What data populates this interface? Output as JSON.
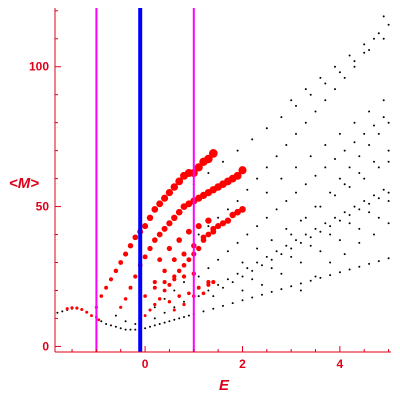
{
  "chart_data": {
    "type": "scatter",
    "title": "",
    "xlabel": "E",
    "ylabel": "<M>",
    "xlim": [
      -1.85,
      5.05
    ],
    "ylim": [
      -2,
      121
    ],
    "x_ticks": [
      0,
      2,
      4
    ],
    "x_tick_labels": [
      "0",
      "2",
      "4"
    ],
    "y_ticks": [
      0,
      50,
      100
    ],
    "y_tick_labels": [
      "0",
      "50",
      "100"
    ],
    "grid": false,
    "legend": "none",
    "vertical_lines": [
      {
        "x": -1.0,
        "color": "#ff00ff",
        "style": "thin"
      },
      {
        "x": -0.1,
        "color": "#0000ff",
        "style": "thick"
      },
      {
        "x": 1.0,
        "color": "#ff00ff",
        "style": "thin"
      }
    ],
    "series": [
      {
        "color": "#000000",
        "marker": "small-dot",
        "points": [
          [
            -1.8,
            12
          ],
          [
            -1.7,
            12.5
          ],
          [
            -1.6,
            13
          ],
          [
            -1.5,
            13.5
          ],
          [
            -1.0,
            10
          ],
          [
            -0.9,
            9
          ],
          [
            -0.8,
            8
          ],
          [
            -0.7,
            7.5
          ],
          [
            -0.6,
            7
          ],
          [
            -0.5,
            6.5
          ],
          [
            -0.4,
            6
          ],
          [
            -0.3,
            6
          ],
          [
            -0.2,
            6
          ],
          [
            -0.1,
            6
          ],
          [
            0.0,
            6.5
          ],
          [
            0.1,
            7
          ],
          [
            0.2,
            7.5
          ],
          [
            0.3,
            8
          ],
          [
            0.4,
            8.5
          ],
          [
            0.5,
            9
          ],
          [
            0.6,
            9.5
          ],
          [
            0.7,
            10
          ],
          [
            0.8,
            10.5
          ],
          [
            0.9,
            11
          ],
          [
            1.0,
            11.5
          ],
          [
            1.2,
            12.5
          ],
          [
            1.4,
            13.5
          ],
          [
            1.6,
            14.5
          ],
          [
            1.8,
            15.5
          ],
          [
            2.0,
            16.5
          ],
          [
            2.2,
            17.5
          ],
          [
            2.4,
            18.5
          ],
          [
            2.6,
            19.5
          ],
          [
            2.8,
            20.5
          ],
          [
            3.0,
            21.5
          ],
          [
            3.2,
            22.5
          ],
          [
            3.4,
            23.5
          ],
          [
            3.6,
            24.5
          ],
          [
            3.8,
            25.5
          ],
          [
            4.0,
            26.5
          ],
          [
            4.2,
            27.5
          ],
          [
            4.4,
            28.5
          ],
          [
            4.6,
            29.5
          ],
          [
            4.8,
            30.5
          ],
          [
            5.0,
            31.5
          ],
          [
            -0.6,
            11
          ],
          [
            -0.4,
            9
          ],
          [
            -0.2,
            8
          ],
          [
            0.2,
            10
          ],
          [
            0.4,
            12
          ],
          [
            0.6,
            14
          ],
          [
            0.8,
            16
          ],
          [
            0.2,
            14
          ],
          [
            0.4,
            17
          ],
          [
            0.6,
            20
          ],
          [
            0.8,
            23
          ],
          [
            1.0,
            26
          ],
          [
            1.1,
            18
          ],
          [
            1.3,
            20
          ],
          [
            1.5,
            22
          ],
          [
            1.7,
            24
          ],
          [
            1.9,
            26
          ],
          [
            2.1,
            28
          ],
          [
            2.3,
            30
          ],
          [
            2.5,
            32
          ],
          [
            2.7,
            34
          ],
          [
            2.9,
            36
          ],
          [
            3.1,
            38
          ],
          [
            3.3,
            40
          ],
          [
            3.5,
            42
          ],
          [
            3.7,
            44
          ],
          [
            3.9,
            46
          ],
          [
            4.1,
            48
          ],
          [
            4.3,
            50
          ],
          [
            4.5,
            52
          ],
          [
            4.7,
            54
          ],
          [
            4.9,
            56
          ],
          [
            1.1,
            25
          ],
          [
            1.3,
            28
          ],
          [
            1.5,
            31
          ],
          [
            1.7,
            34
          ],
          [
            1.9,
            37
          ],
          [
            2.1,
            40
          ],
          [
            2.3,
            43
          ],
          [
            2.5,
            46
          ],
          [
            2.7,
            49
          ],
          [
            2.9,
            52
          ],
          [
            3.1,
            55
          ],
          [
            3.3,
            58
          ],
          [
            3.5,
            61
          ],
          [
            3.7,
            64
          ],
          [
            3.9,
            67
          ],
          [
            4.1,
            70
          ],
          [
            4.3,
            73
          ],
          [
            4.5,
            76
          ],
          [
            4.7,
            79
          ],
          [
            4.9,
            82
          ],
          [
            1.1,
            40
          ],
          [
            1.3,
            43
          ],
          [
            1.5,
            46
          ],
          [
            1.7,
            49
          ],
          [
            1.9,
            52
          ],
          [
            2.1,
            56
          ],
          [
            2.3,
            60
          ],
          [
            2.5,
            64
          ],
          [
            2.7,
            68
          ],
          [
            2.9,
            72
          ],
          [
            3.1,
            76
          ],
          [
            3.3,
            80
          ],
          [
            3.5,
            84
          ],
          [
            3.7,
            88
          ],
          [
            3.9,
            92
          ],
          [
            4.1,
            96
          ],
          [
            4.3,
            100
          ],
          [
            4.5,
            105
          ],
          [
            4.7,
            110
          ],
          [
            4.9,
            118
          ],
          [
            1.0,
            58
          ],
          [
            1.3,
            62
          ],
          [
            1.6,
            66
          ],
          [
            1.9,
            70
          ],
          [
            2.2,
            74
          ],
          [
            2.5,
            78
          ],
          [
            2.8,
            82
          ],
          [
            3.1,
            86
          ],
          [
            3.4,
            90
          ],
          [
            3.7,
            94
          ],
          [
            4.0,
            98
          ],
          [
            4.3,
            102
          ],
          [
            4.6,
            106
          ],
          [
            4.9,
            110
          ],
          [
            2.0,
            20
          ],
          [
            2.2,
            24
          ],
          [
            2.4,
            22
          ],
          [
            2.6,
            28
          ],
          [
            2.8,
            26
          ],
          [
            3.0,
            32
          ],
          [
            3.2,
            30
          ],
          [
            3.4,
            36
          ],
          [
            3.6,
            34
          ],
          [
            3.8,
            40
          ],
          [
            4.0,
            38
          ],
          [
            4.2,
            44
          ],
          [
            4.4,
            42
          ],
          [
            4.6,
            48
          ],
          [
            4.8,
            46
          ],
          [
            5.0,
            52
          ],
          [
            2.0,
            30
          ],
          [
            2.3,
            35
          ],
          [
            2.6,
            38
          ],
          [
            2.9,
            42
          ],
          [
            3.2,
            45
          ],
          [
            3.5,
            50
          ],
          [
            3.8,
            55
          ],
          [
            4.1,
            58
          ],
          [
            4.4,
            62
          ],
          [
            4.7,
            66
          ],
          [
            5.0,
            70
          ],
          [
            2.5,
            55
          ],
          [
            2.8,
            60
          ],
          [
            3.1,
            64
          ],
          [
            3.4,
            68
          ],
          [
            3.7,
            72
          ],
          [
            4.0,
            76
          ],
          [
            4.3,
            80
          ],
          [
            4.6,
            84
          ],
          [
            4.9,
            88
          ],
          [
            3.0,
            40
          ],
          [
            3.3,
            46
          ],
          [
            3.6,
            50
          ],
          [
            3.9,
            54
          ],
          [
            4.2,
            57
          ],
          [
            4.5,
            60
          ],
          [
            4.8,
            64
          ],
          [
            5.0,
            66
          ],
          [
            1.4,
            18
          ],
          [
            1.6,
            21
          ],
          [
            1.8,
            23
          ],
          [
            2.0,
            25
          ],
          [
            2.2,
            27
          ],
          [
            2.4,
            29
          ],
          [
            2.6,
            31
          ],
          [
            2.8,
            33
          ],
          [
            3.0,
            35
          ],
          [
            3.2,
            37
          ],
          [
            3.4,
            39
          ],
          [
            3.6,
            41
          ],
          [
            3.8,
            43
          ],
          [
            4.0,
            45
          ],
          [
            4.2,
            47
          ],
          [
            4.4,
            49
          ],
          [
            4.6,
            51
          ],
          [
            4.8,
            53
          ],
          [
            5.0,
            55
          ],
          [
            3.2,
            20
          ],
          [
            3.5,
            25
          ],
          [
            3.8,
            30
          ],
          [
            4.1,
            33
          ],
          [
            4.4,
            37
          ],
          [
            4.7,
            40
          ],
          [
            5.0,
            44
          ],
          [
            4.0,
            60
          ],
          [
            4.2,
            64
          ],
          [
            4.4,
            68
          ],
          [
            4.6,
            72
          ],
          [
            4.8,
            76
          ],
          [
            5.0,
            80
          ],
          [
            3.0,
            88
          ],
          [
            3.3,
            92
          ],
          [
            3.6,
            96
          ],
          [
            3.9,
            100
          ],
          [
            4.2,
            104
          ],
          [
            4.5,
            108
          ],
          [
            4.8,
            112
          ],
          [
            5.0,
            115
          ]
        ]
      },
      {
        "color": "#ff0000",
        "marker": "large-dot",
        "points": [
          [
            -1.6,
            13.5
          ],
          [
            -1.5,
            13.8
          ],
          [
            -1.4,
            13.7
          ],
          [
            -1.3,
            13.2
          ],
          [
            -1.2,
            12.2
          ],
          [
            -1.1,
            11
          ],
          [
            -1.0,
            10.5
          ],
          [
            -0.95,
            9.5
          ],
          [
            -1.0,
            14
          ],
          [
            -0.9,
            18
          ],
          [
            -0.8,
            21
          ],
          [
            -0.7,
            24
          ],
          [
            -0.6,
            27
          ],
          [
            -0.5,
            30
          ],
          [
            -0.4,
            33
          ],
          [
            -0.3,
            36
          ],
          [
            -0.2,
            39
          ],
          [
            -0.1,
            41
          ],
          [
            0.0,
            43
          ],
          [
            0.1,
            46
          ],
          [
            0.2,
            49
          ],
          [
            0.3,
            51
          ],
          [
            0.4,
            53
          ],
          [
            0.5,
            55
          ],
          [
            0.6,
            57
          ],
          [
            0.7,
            59
          ],
          [
            0.8,
            61
          ],
          [
            0.9,
            62
          ],
          [
            1.0,
            62
          ],
          [
            1.1,
            64
          ],
          [
            1.2,
            66
          ],
          [
            1.3,
            67
          ],
          [
            1.4,
            69
          ],
          [
            -0.5,
            14
          ],
          [
            -0.4,
            17
          ],
          [
            -0.3,
            21
          ],
          [
            -0.2,
            25
          ],
          [
            -0.1,
            29
          ],
          [
            0.0,
            32
          ],
          [
            0.1,
            35
          ],
          [
            0.2,
            38
          ],
          [
            0.3,
            40
          ],
          [
            0.4,
            42
          ],
          [
            0.5,
            44
          ],
          [
            0.6,
            46
          ],
          [
            0.7,
            48
          ],
          [
            0.8,
            50
          ],
          [
            0.9,
            51
          ],
          [
            1.0,
            52
          ],
          [
            1.1,
            53
          ],
          [
            1.2,
            54
          ],
          [
            1.3,
            55
          ],
          [
            1.4,
            56
          ],
          [
            1.5,
            57
          ],
          [
            1.6,
            58
          ],
          [
            1.7,
            59
          ],
          [
            1.8,
            60
          ],
          [
            1.9,
            61
          ],
          [
            2.0,
            63
          ],
          [
            0.0,
            11
          ],
          [
            0.1,
            13
          ],
          [
            0.2,
            15
          ],
          [
            0.3,
            17
          ],
          [
            0.4,
            20
          ],
          [
            0.5,
            22
          ],
          [
            0.6,
            25
          ],
          [
            0.7,
            27
          ],
          [
            0.8,
            29
          ],
          [
            0.9,
            31
          ],
          [
            1.0,
            33
          ],
          [
            1.1,
            35
          ],
          [
            1.2,
            38
          ],
          [
            1.3,
            40
          ],
          [
            1.4,
            41
          ],
          [
            1.5,
            43
          ],
          [
            1.6,
            44
          ],
          [
            1.7,
            45
          ],
          [
            1.8,
            47
          ],
          [
            1.9,
            48
          ],
          [
            2.0,
            49
          ],
          [
            0.2,
            23
          ],
          [
            0.4,
            27
          ],
          [
            0.6,
            31
          ],
          [
            0.8,
            33
          ],
          [
            1.0,
            36
          ],
          [
            1.2,
            39
          ],
          [
            1.4,
            42
          ],
          [
            0.0,
            18
          ],
          [
            0.2,
            21
          ],
          [
            0.4,
            23
          ],
          [
            0.6,
            24
          ],
          [
            0.8,
            25
          ],
          [
            1.0,
            26
          ],
          [
            0.5,
            16
          ],
          [
            0.7,
            18
          ],
          [
            0.9,
            19
          ],
          [
            1.1,
            21
          ],
          [
            1.3,
            23
          ],
          [
            0.3,
            31
          ],
          [
            0.5,
            35
          ],
          [
            0.7,
            38
          ],
          [
            0.9,
            41
          ],
          [
            1.1,
            43
          ],
          [
            1.3,
            45
          ],
          [
            0.6,
            13
          ],
          [
            0.8,
            15
          ],
          [
            1.0,
            18
          ],
          [
            1.2,
            19
          ],
          [
            1.3,
            22
          ],
          [
            1.4,
            23
          ]
        ]
      }
    ]
  }
}
